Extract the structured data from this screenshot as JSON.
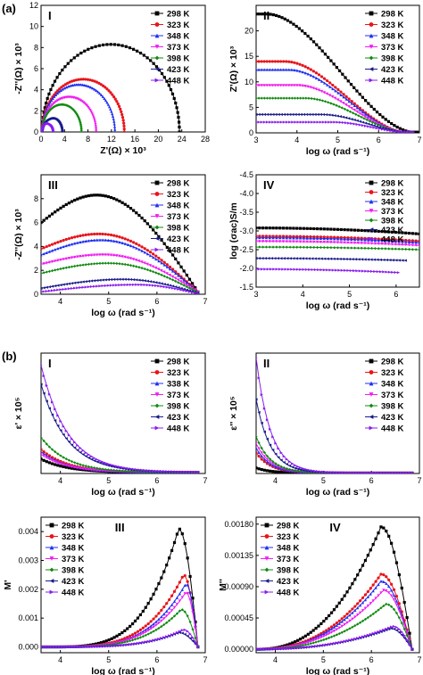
{
  "section_labels": [
    "(a)",
    "(b)"
  ],
  "legend_labels": [
    "298 K",
    "323 K",
    "348 K",
    "373 K",
    "398 K",
    "423 K",
    "448 K"
  ],
  "legend_labels_b1": [
    "298 K",
    "323 K",
    "338 K",
    "373 K",
    "398 K",
    "423 K",
    "448 K"
  ],
  "series_colors": [
    "#000000",
    "#e8141b",
    "#1f2ff0",
    "#f01cf0",
    "#0e8a0e",
    "#1a1a8c",
    "#8a1cf0"
  ],
  "series_markers": [
    "square",
    "circle",
    "triangle-up",
    "triangle-down",
    "diamond",
    "triangle-left",
    "triangle-right"
  ],
  "chart_data": [
    {
      "id": "a-I",
      "panel": "I",
      "type": "scatter",
      "xlabel": "Z'(Ω) × 10³",
      "ylabel": "-Z''(Ω) × 10³",
      "xlim": [
        0,
        28
      ],
      "ylim": [
        0,
        12
      ],
      "xticks": [
        0,
        4,
        8,
        12,
        16,
        20,
        24,
        28
      ],
      "yticks": [
        0,
        2,
        4,
        6,
        8,
        10,
        12
      ],
      "legend_position": "top-right",
      "series": [
        {
          "name": "298 K",
          "arc": [
            0.2,
            23.6,
            8.3
          ]
        },
        {
          "name": "323 K",
          "arc": [
            0.2,
            14.2,
            5.0
          ]
        },
        {
          "name": "348 K",
          "arc": [
            0.2,
            12.6,
            4.5
          ]
        },
        {
          "name": "373 K",
          "arc": [
            0.2,
            9.4,
            3.3
          ]
        },
        {
          "name": "398 K",
          "arc": [
            0.2,
            6.9,
            2.6
          ]
        },
        {
          "name": "423 K",
          "arc": [
            0.2,
            3.6,
            1.3
          ]
        },
        {
          "name": "448 K",
          "arc": [
            0.2,
            2.1,
            0.8
          ]
        }
      ]
    },
    {
      "id": "a-II",
      "panel": "II",
      "type": "scatter",
      "xlabel": "log ω (rad s⁻¹)",
      "ylabel": "Z'(Ω) × 10³",
      "xlim": [
        3,
        7
      ],
      "ylim": [
        0,
        25
      ],
      "xticks": [
        3,
        4,
        5,
        6,
        7
      ],
      "yticks": [
        0,
        5,
        10,
        15,
        20
      ],
      "legend_position": "top-right",
      "series": [
        {
          "name": "298 K",
          "plateau": 23.3,
          "knee": 3.25,
          "end": 6.95
        },
        {
          "name": "323 K",
          "plateau": 14.0,
          "knee": 3.7,
          "end": 6.75
        },
        {
          "name": "348 K",
          "plateau": 12.4,
          "knee": 3.8,
          "end": 6.75
        },
        {
          "name": "373 K",
          "plateau": 9.3,
          "knee": 4.0,
          "end": 6.75
        },
        {
          "name": "398 K",
          "plateau": 6.8,
          "knee": 4.2,
          "end": 6.8
        },
        {
          "name": "423 K",
          "plateau": 3.6,
          "knee": 4.6,
          "end": 6.85
        },
        {
          "name": "448 K",
          "plateau": 2.1,
          "knee": 4.9,
          "end": 6.85
        }
      ]
    },
    {
      "id": "a-III",
      "panel": "III",
      "type": "scatter",
      "xlabel": "log ω (rad s⁻¹)",
      "ylabel": "-Z''(Ω) × 10³",
      "xlim": [
        3.6,
        7
      ],
      "ylim": [
        0,
        10
      ],
      "xticks": [
        4,
        5,
        6,
        7
      ],
      "yticks": [
        0,
        2,
        4,
        6,
        8
      ],
      "legend_position": "top-right",
      "series": [
        {
          "name": "298 K",
          "start": 6.0,
          "peak": 8.3,
          "peak_x": 4.75,
          "end": 0.2
        },
        {
          "name": "323 K",
          "start": 3.8,
          "peak": 5.05,
          "peak_x": 4.8,
          "end": 0.2
        },
        {
          "name": "348 K",
          "start": 3.3,
          "peak": 4.55,
          "peak_x": 4.85,
          "end": 0.2
        },
        {
          "name": "373 K",
          "start": 2.5,
          "peak": 3.3,
          "peak_x": 4.9,
          "end": 0.2
        },
        {
          "name": "398 K",
          "start": 1.75,
          "peak": 2.6,
          "peak_x": 5.0,
          "end": 0.15
        },
        {
          "name": "423 K",
          "start": 0.5,
          "peak": 1.25,
          "peak_x": 5.3,
          "end": 0.1
        },
        {
          "name": "448 K",
          "start": 0.2,
          "peak": 0.8,
          "peak_x": 5.6,
          "end": 0.05
        }
      ]
    },
    {
      "id": "a-IV",
      "panel": "IV",
      "type": "scatter",
      "xlabel": "log ω (rad s⁻¹)",
      "ylabel": "log (σac)S/m",
      "xlim": [
        3,
        6.5
      ],
      "ylim": [
        -1.5,
        -4.5
      ],
      "y_reversed": true,
      "xticks": [
        3,
        4,
        5,
        6
      ],
      "yticks": [
        -1.5,
        -2.0,
        -2.5,
        -3.0,
        -3.5,
        -4.0,
        -4.5
      ],
      "legend_position": "top-right",
      "series": [
        {
          "name": "298 K",
          "y0": -3.08,
          "y1": -2.92,
          "x_end": 6.5
        },
        {
          "name": "323 K",
          "y0": -2.86,
          "y1": -2.73,
          "x_end": 6.5
        },
        {
          "name": "348 K",
          "y0": -2.82,
          "y1": -2.69,
          "x_end": 6.5
        },
        {
          "name": "373 K",
          "y0": -2.72,
          "y1": -2.61,
          "x_end": 6.5
        },
        {
          "name": "398 K",
          "y0": -2.57,
          "y1": -2.5,
          "x_end": 6.5
        },
        {
          "name": "423 K",
          "y0": -2.27,
          "y1": -2.2,
          "x_end": 6.2
        },
        {
          "name": "448 K",
          "y0": -1.98,
          "y1": -1.86,
          "x_end": 6.05
        }
      ]
    },
    {
      "id": "b-I",
      "panel": "I",
      "type": "scatter",
      "xlabel": "log ω (rad s⁻¹)",
      "ylabel": "ε' × 10⁵",
      "xlim": [
        3.6,
        7
      ],
      "ylim": [
        0,
        0.5
      ],
      "xticks": [
        4,
        5,
        6,
        7
      ],
      "yticks": [],
      "legend_position": "top-right",
      "series": [
        {
          "name": "298 K",
          "start": 0.06,
          "floor": 0.004
        },
        {
          "name": "323 K",
          "start": 0.1,
          "floor": 0.004
        },
        {
          "name": "338 K",
          "start": 0.09,
          "floor": 0.004
        },
        {
          "name": "373 K",
          "start": 0.08,
          "floor": 0.004
        },
        {
          "name": "398 K",
          "start": 0.15,
          "floor": 0.004
        },
        {
          "name": "423 K",
          "start": 0.37,
          "floor": 0.004
        },
        {
          "name": "448 K",
          "start": 0.45,
          "floor": 0.004
        }
      ]
    },
    {
      "id": "b-II",
      "panel": "II",
      "type": "scatter",
      "xlabel": "log ω (rad s⁻¹)",
      "ylabel": "ε'' × 10⁵",
      "xlim": [
        3.6,
        7
      ],
      "ylim": [
        0,
        2.6
      ],
      "xticks": [
        4,
        5,
        6,
        7
      ],
      "yticks": [],
      "legend_position": "top-right",
      "series": [
        {
          "name": "298 K",
          "start": 0.12,
          "floor": 0.01
        },
        {
          "name": "323 K",
          "start": 0.45,
          "floor": 0.01
        },
        {
          "name": "348 K",
          "start": 0.55,
          "floor": 0.01
        },
        {
          "name": "373 K",
          "start": 0.65,
          "floor": 0.01
        },
        {
          "name": "398 K",
          "start": 0.8,
          "floor": 0.01
        },
        {
          "name": "423 K",
          "start": 1.6,
          "floor": 0.01
        },
        {
          "name": "448 K",
          "start": 2.5,
          "floor": 0.01
        }
      ]
    },
    {
      "id": "b-III",
      "panel": "III",
      "type": "scatter",
      "xlabel": "log ω (rad s⁻¹)",
      "ylabel": "M'",
      "xlim": [
        3.6,
        7
      ],
      "ylim": [
        -0.0002,
        0.0045
      ],
      "xticks": [
        4,
        5,
        6,
        7
      ],
      "yticks": [
        0.0,
        0.001,
        0.002,
        0.003,
        0.004
      ],
      "ytick_labels": [
        "0.000",
        "0.001",
        "0.002",
        "0.003",
        "0.004"
      ],
      "legend_position": "top-left",
      "series": [
        {
          "name": "298 K",
          "peak": 0.0041,
          "peak_x": 6.45
        },
        {
          "name": "323 K",
          "peak": 0.0025,
          "peak_x": 6.55
        },
        {
          "name": "348 K",
          "peak": 0.0022,
          "peak_x": 6.6
        },
        {
          "name": "373 K",
          "peak": 0.0019,
          "peak_x": 6.6
        },
        {
          "name": "398 K",
          "peak": 0.0013,
          "peak_x": 6.5
        },
        {
          "name": "423 K",
          "peak": 0.0005,
          "peak_x": 6.45
        },
        {
          "name": "448 K",
          "peak": 0.0006,
          "peak_x": 6.55
        }
      ]
    },
    {
      "id": "b-IV",
      "panel": "IV",
      "type": "scatter",
      "xlabel": "log ω (rad s⁻¹)",
      "ylabel": "M''",
      "xlim": [
        3.6,
        7
      ],
      "ylim": [
        -5e-05,
        0.0019
      ],
      "xticks": [
        4,
        5,
        6,
        7
      ],
      "yticks": [
        0.0,
        0.00045,
        0.0009,
        0.00135,
        0.0018
      ],
      "ytick_labels": [
        "0.00000",
        "0.00045",
        "0.00090",
        "0.00135",
        "0.00180"
      ],
      "legend_position": "top-left",
      "series": [
        {
          "name": "298 K",
          "peak": 0.00176,
          "peak_x": 6.2
        },
        {
          "name": "323 K",
          "peak": 0.00108,
          "peak_x": 6.2
        },
        {
          "name": "348 K",
          "peak": 0.00098,
          "peak_x": 6.2
        },
        {
          "name": "373 K",
          "peak": 0.00085,
          "peak_x": 6.25
        },
        {
          "name": "398 K",
          "peak": 0.00065,
          "peak_x": 6.3
        },
        {
          "name": "423 K",
          "peak": 0.0003,
          "peak_x": 6.4
        },
        {
          "name": "448 K",
          "peak": 0.00033,
          "peak_x": 6.45
        }
      ]
    }
  ]
}
